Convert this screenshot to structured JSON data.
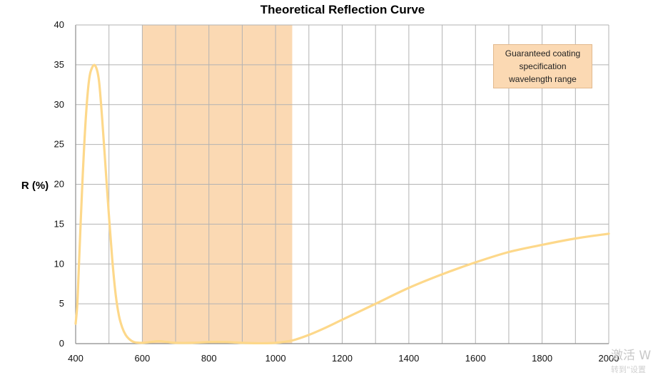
{
  "chart_data": {
    "type": "line",
    "title": "Theoretical Reflection Curve",
    "xlabel": "",
    "ylabel": "R (%)",
    "xlim": [
      400,
      2000
    ],
    "ylim": [
      0,
      40
    ],
    "x_ticks": [
      400,
      600,
      800,
      1000,
      1200,
      1400,
      1600,
      1800,
      2000
    ],
    "y_ticks": [
      0,
      5,
      10,
      15,
      20,
      25,
      30,
      35,
      40
    ],
    "grid": true,
    "grid_x_step": 100,
    "grid_y_step": 5,
    "shaded_range": {
      "x": [
        600,
        1050
      ],
      "label": "Guaranteed coating specification wavelength range",
      "color": "#fbd9b3"
    },
    "series": [
      {
        "color": "#fdd88a",
        "points": [
          [
            400,
            2.5
          ],
          [
            405,
            5
          ],
          [
            410,
            10
          ],
          [
            420,
            20
          ],
          [
            430,
            28
          ],
          [
            440,
            33
          ],
          [
            450,
            34.7
          ],
          [
            460,
            34.8
          ],
          [
            470,
            33
          ],
          [
            480,
            28
          ],
          [
            490,
            22
          ],
          [
            500,
            16
          ],
          [
            510,
            10.5
          ],
          [
            520,
            6.2
          ],
          [
            530,
            3.5
          ],
          [
            540,
            2.0
          ],
          [
            550,
            1.1
          ],
          [
            560,
            0.6
          ],
          [
            575,
            0.2
          ],
          [
            600,
            0.1
          ],
          [
            625,
            0.2
          ],
          [
            650,
            0.3
          ],
          [
            675,
            0.2
          ],
          [
            700,
            0.1
          ],
          [
            750,
            0.1
          ],
          [
            800,
            0.2
          ],
          [
            850,
            0.2
          ],
          [
            900,
            0.1
          ],
          [
            950,
            0.05
          ],
          [
            1000,
            0.1
          ],
          [
            1050,
            0.4
          ],
          [
            1100,
            1.1
          ],
          [
            1150,
            2.0
          ],
          [
            1200,
            3.0
          ],
          [
            1300,
            5.0
          ],
          [
            1400,
            7.0
          ],
          [
            1500,
            8.7
          ],
          [
            1600,
            10.2
          ],
          [
            1700,
            11.5
          ],
          [
            1800,
            12.4
          ],
          [
            1900,
            13.2
          ],
          [
            2000,
            13.8
          ]
        ]
      }
    ],
    "legend_text": [
      "Guaranteed coating",
      "specification",
      "wavelength range"
    ],
    "colors": {
      "grid": "#b3b3b3",
      "axis": "#8c8c8c",
      "line": "#fdd88a",
      "band": "#fbd9b3"
    }
  },
  "watermark": {
    "line1": "激活 W",
    "line2": "转到\"设置"
  }
}
